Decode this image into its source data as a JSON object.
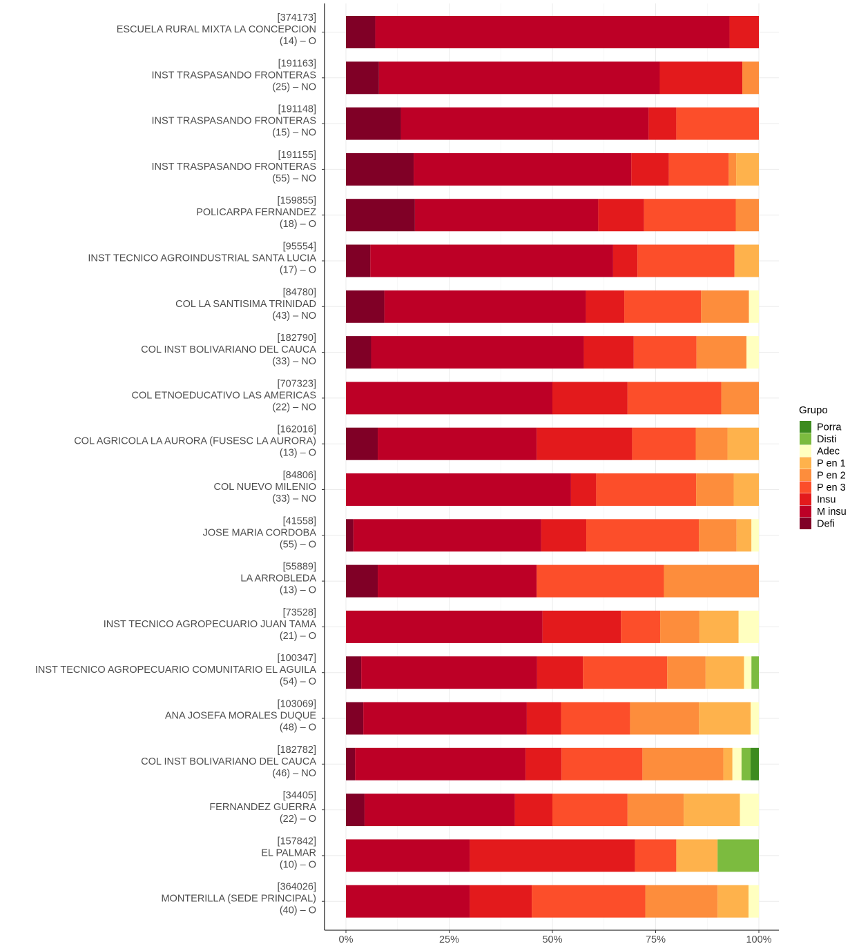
{
  "chart_data": {
    "type": "bar",
    "orientation": "horizontal",
    "stacked": true,
    "percent": true,
    "xlim": [
      0,
      100
    ],
    "xticks": [
      0,
      25,
      50,
      75,
      100
    ],
    "xtick_labels": [
      "0%",
      "25%",
      "50%",
      "75%",
      "100%"
    ],
    "grid": true,
    "legend": {
      "title": "Grupo",
      "position": "right",
      "entries": [
        {
          "name": "Porra",
          "color": "#3d8b1f"
        },
        {
          "name": "Disti",
          "color": "#7cbb3f"
        },
        {
          "name": "Adec",
          "color": "#ffffc0"
        },
        {
          "name": "P en 1",
          "color": "#feb24c"
        },
        {
          "name": "P en 2",
          "color": "#fd8d3c"
        },
        {
          "name": "P en 3",
          "color": "#fc4e2a"
        },
        {
          "name": "Insu",
          "color": "#e31a1c"
        },
        {
          "name": "M insu",
          "color": "#bd0026"
        },
        {
          "name": "Defi",
          "color": "#800026"
        }
      ]
    },
    "stack_order": [
      "Defi",
      "M insu",
      "Insu",
      "P en 3",
      "P en 2",
      "P en 1",
      "Adec",
      "Disti",
      "Porra"
    ],
    "categories": [
      {
        "code": "[374173]",
        "name": "ESCUELA RURAL MIXTA LA CONCEPCION",
        "info": "(14) – O",
        "values": {
          "Defi": 7.1,
          "M insu": 85.8,
          "Insu": 7.1
        }
      },
      {
        "code": "[191163]",
        "name": "INST TRASPASANDO FRONTERAS",
        "info": "(25) – NO",
        "values": {
          "Defi": 8,
          "M insu": 68,
          "Insu": 20,
          "P en 2": 4
        }
      },
      {
        "code": "[191148]",
        "name": "INST TRASPASANDO FRONTERAS",
        "info": "(15) – NO",
        "values": {
          "Defi": 13.3,
          "M insu": 60,
          "Insu": 6.7,
          "P en 3": 20
        }
      },
      {
        "code": "[191155]",
        "name": "INST TRASPASANDO FRONTERAS",
        "info": "(55) – NO",
        "values": {
          "Defi": 16.4,
          "M insu": 52.7,
          "Insu": 9.1,
          "P en 3": 14.5,
          "P en 2": 1.8,
          "P en 1": 5.5
        }
      },
      {
        "code": "[159855]",
        "name": "POLICARPA FERNANDEZ",
        "info": "(18) – O",
        "values": {
          "Defi": 16.7,
          "M insu": 44.4,
          "Insu": 11.1,
          "P en 3": 22.2,
          "P en 2": 5.6
        }
      },
      {
        "code": "[95554]",
        "name": "INST TECNICO AGROINDUSTRIAL SANTA LUCIA",
        "info": "(17) – O",
        "values": {
          "Defi": 5.9,
          "M insu": 58.8,
          "Insu": 5.9,
          "P en 3": 23.5,
          "P en 1": 5.9
        }
      },
      {
        "code": "[84780]",
        "name": "COL LA SANTISIMA TRINIDAD",
        "info": "(43) – NO",
        "values": {
          "Defi": 9.3,
          "M insu": 48.8,
          "Insu": 9.3,
          "P en 3": 18.6,
          "P en 2": 11.6,
          "Adec": 2.4
        }
      },
      {
        "code": "[182790]",
        "name": "COL INST BOLIVARIANO DEL CAUCA",
        "info": "(33) – NO",
        "values": {
          "Defi": 6.1,
          "M insu": 51.5,
          "Insu": 12.1,
          "P en 3": 15.2,
          "P en 2": 12.1,
          "Adec": 3
        }
      },
      {
        "code": "[707323]",
        "name": "COL ETNOEDUCATIVO LAS AMERICAS",
        "info": "(22) – NO",
        "values": {
          "M insu": 50,
          "Insu": 18.2,
          "P en 3": 22.7,
          "P en 2": 9.1
        }
      },
      {
        "code": "[162016]",
        "name": "COL AGRICOLA LA AURORA (FUSESC LA AURORA)",
        "info": "(13) – O",
        "values": {
          "Defi": 7.7,
          "M insu": 38.5,
          "Insu": 23.1,
          "P en 3": 15.4,
          "P en 2": 7.7,
          "P en 1": 7.6
        }
      },
      {
        "code": "[84806]",
        "name": "COL NUEVO MILENIO",
        "info": "(33) – NO",
        "values": {
          "M insu": 54.5,
          "Insu": 6.1,
          "P en 3": 24.2,
          "P en 2": 9.1,
          "P en 1": 6.1
        }
      },
      {
        "code": "[41558]",
        "name": "JOSE MARIA CORDOBA",
        "info": "(55) – O",
        "values": {
          "Defi": 1.8,
          "M insu": 45.5,
          "Insu": 10.9,
          "P en 3": 27.3,
          "P en 2": 9.1,
          "P en 1": 3.6,
          "Adec": 1.8
        }
      },
      {
        "code": "[55889]",
        "name": "LA ARROBLEDA",
        "info": "(13) – O",
        "values": {
          "Defi": 7.7,
          "M insu": 38.5,
          "P en 3": 30.8,
          "P en 2": 23
        }
      },
      {
        "code": "[73528]",
        "name": "INST TECNICO AGROPECUARIO JUAN TAMA",
        "info": "(21) – O",
        "values": {
          "M insu": 47.6,
          "Insu": 19,
          "P en 3": 9.5,
          "P en 2": 9.5,
          "P en 1": 9.5,
          "Adec": 4.9
        }
      },
      {
        "code": "[100347]",
        "name": "INST TECNICO AGROPECUARIO COMUNITARIO EL AGUILA",
        "info": "(54) – O",
        "values": {
          "Defi": 3.7,
          "M insu": 42.6,
          "Insu": 11.1,
          "P en 3": 20.4,
          "P en 2": 9.3,
          "P en 1": 9.3,
          "Adec": 1.8,
          "Disti": 1.8
        }
      },
      {
        "code": "[103069]",
        "name": "ANA JOSEFA MORALES DUQUE",
        "info": "(48) – O",
        "values": {
          "Defi": 4.2,
          "M insu": 39.6,
          "Insu": 8.3,
          "P en 3": 16.7,
          "P en 2": 16.7,
          "P en 1": 12.5,
          "Adec": 2
        }
      },
      {
        "code": "[182782]",
        "name": "COL INST BOLIVARIANO DEL CAUCA",
        "info": "(46) – NO",
        "values": {
          "Defi": 2.2,
          "M insu": 41.3,
          "Insu": 8.7,
          "P en 3": 19.6,
          "P en 2": 19.6,
          "P en 1": 2.2,
          "Adec": 2.2,
          "Disti": 2.2,
          "Porra": 2
        }
      },
      {
        "code": "[34405]",
        "name": "FERNANDEZ GUERRA",
        "info": "(22) – O",
        "values": {
          "Defi": 4.5,
          "M insu": 36.4,
          "Insu": 9.1,
          "P en 3": 18.2,
          "P en 2": 13.6,
          "P en 1": 13.6,
          "Adec": 4.6
        }
      },
      {
        "code": "[157842]",
        "name": "EL PALMAR",
        "info": "(10) – O",
        "values": {
          "M insu": 30,
          "Insu": 40,
          "P en 3": 10,
          "P en 1": 10,
          "Disti": 10
        }
      },
      {
        "code": "[364026]",
        "name": "MONTERILLA (SEDE PRINCIPAL)",
        "info": "(40) – O",
        "values": {
          "M insu": 30,
          "Insu": 15,
          "P en 3": 27.5,
          "P en 2": 17.5,
          "P en 1": 7.5,
          "Adec": 2.5
        }
      }
    ]
  }
}
